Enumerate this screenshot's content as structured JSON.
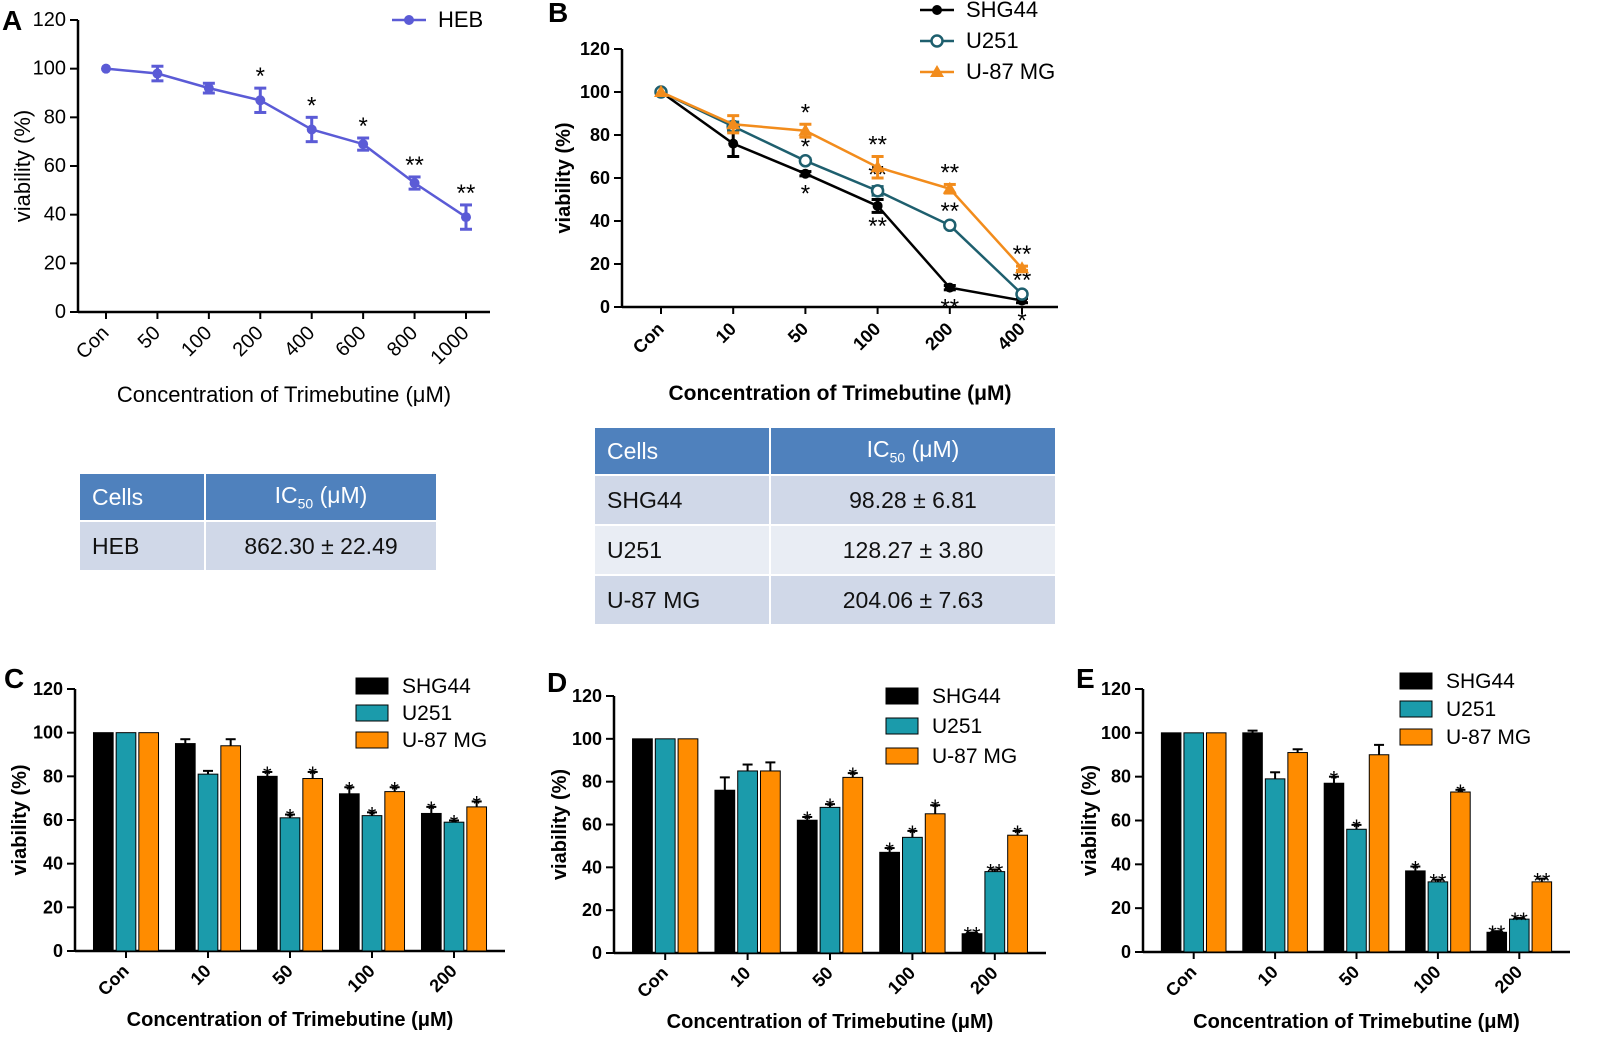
{
  "panels": {
    "A": "A",
    "B": "B",
    "C": "C",
    "D": "D",
    "E": "E"
  },
  "chart_data": [
    {
      "id": "A",
      "type": "line",
      "ylabel": "viability (%)",
      "xlabel": "Concentration of Trimebutine (μM)",
      "categories": [
        "Con",
        "50",
        "100",
        "200",
        "400",
        "600",
        "800",
        "1000"
      ],
      "yticks": [
        "0",
        "20",
        "40",
        "60",
        "80",
        "100",
        "120"
      ],
      "ylim": [
        0,
        120
      ],
      "series": [
        {
          "name": "HEB",
          "color": "#5b5bd6",
          "marker": "circle",
          "values": [
            100,
            98,
            92,
            87,
            75,
            69,
            53,
            39
          ],
          "errors": [
            0,
            3,
            2,
            5,
            5,
            2.5,
            2.5,
            5
          ],
          "sig": [
            "",
            "",
            "",
            "*",
            "*",
            "*",
            "**",
            "**"
          ]
        }
      ]
    },
    {
      "id": "B",
      "type": "line",
      "ylabel": "viability (%)",
      "xlabel": "Concentration of Trimebutine (μM)",
      "categories": [
        "Con",
        "10",
        "50",
        "100",
        "200",
        "400"
      ],
      "yticks": [
        "0",
        "20",
        "40",
        "60",
        "80",
        "100",
        "120"
      ],
      "ylim": [
        0,
        120
      ],
      "series": [
        {
          "name": "SHG44",
          "color": "#000000",
          "marker": "circle",
          "values": [
            100,
            76,
            62,
            47,
            9,
            3
          ],
          "errors": [
            0,
            6,
            1,
            3,
            1,
            1
          ],
          "sig": [
            "",
            "",
            "*",
            "**",
            "**",
            "*"
          ]
        },
        {
          "name": "U251",
          "color": "#1e5f6e",
          "marker": "open-circle",
          "values": [
            100,
            84,
            68,
            54,
            38,
            6
          ],
          "errors": [
            0,
            2,
            1,
            2,
            1,
            1
          ],
          "sig": [
            "",
            "",
            "*",
            "**",
            "**",
            "**"
          ]
        },
        {
          "name": "U-87 MG",
          "color": "#f28c1c",
          "marker": "triangle",
          "values": [
            100,
            85,
            82,
            65,
            55,
            18
          ],
          "errors": [
            0,
            4,
            3,
            5,
            2,
            1
          ],
          "sig": [
            "",
            "",
            "*",
            "**",
            "**",
            "**"
          ]
        }
      ]
    },
    {
      "id": "C",
      "type": "bar",
      "ylabel": "viability (%)",
      "xlabel": "Concentration of Trimebutine (μM)",
      "categories": [
        "Con",
        "10",
        "50",
        "100",
        "200"
      ],
      "yticks": [
        "0",
        "20",
        "40",
        "60",
        "80",
        "100",
        "120"
      ],
      "ylim": [
        0,
        120
      ],
      "series": [
        {
          "name": "SHG44",
          "color": "#000000",
          "values": [
            100,
            95,
            80,
            72,
            63
          ],
          "errors": [
            0,
            2,
            2,
            3,
            3
          ],
          "sig": [
            "",
            "",
            "*",
            "*",
            "*"
          ]
        },
        {
          "name": "U251",
          "color": "#1b9bab",
          "values": [
            100,
            81,
            61,
            62,
            59
          ],
          "errors": [
            0,
            1.5,
            1.5,
            1.5,
            0.8
          ],
          "sig": [
            "",
            "",
            "*",
            "*",
            "*"
          ]
        },
        {
          "name": "U-87 MG",
          "color": "#ff8c00",
          "values": [
            100,
            94,
            79,
            73,
            66
          ],
          "errors": [
            0,
            3,
            3,
            2,
            2.5
          ],
          "sig": [
            "",
            "",
            "*",
            "*",
            "*"
          ]
        }
      ]
    },
    {
      "id": "D",
      "type": "bar",
      "ylabel": "viability (%)",
      "xlabel": "Concentration of Trimebutine (μM)",
      "categories": [
        "Con",
        "10",
        "50",
        "100",
        "200"
      ],
      "yticks": [
        "0",
        "20",
        "40",
        "60",
        "80",
        "100",
        "120"
      ],
      "ylim": [
        0,
        120
      ],
      "series": [
        {
          "name": "SHG44",
          "color": "#000000",
          "values": [
            100,
            76,
            62,
            47,
            9
          ],
          "errors": [
            0,
            6,
            1.5,
            2,
            0.5
          ],
          "sig": [
            "",
            "",
            "*",
            "*",
            "**"
          ]
        },
        {
          "name": "U251",
          "color": "#1b9bab",
          "values": [
            100,
            85,
            68,
            54,
            38
          ],
          "errors": [
            0,
            3,
            1.5,
            3,
            1
          ],
          "sig": [
            "",
            "",
            "*",
            "*",
            "**"
          ]
        },
        {
          "name": "U-87 MG",
          "color": "#ff8c00",
          "values": [
            100,
            85,
            82,
            65,
            55
          ],
          "errors": [
            0,
            4,
            2,
            4,
            2
          ],
          "sig": [
            "",
            "",
            "*",
            "*",
            "*"
          ]
        }
      ]
    },
    {
      "id": "E",
      "type": "bar",
      "ylabel": "viability (%)",
      "xlabel": "Concentration of Trimebutine (μM)",
      "categories": [
        "Con",
        "10",
        "50",
        "100",
        "200"
      ],
      "yticks": [
        "0",
        "20",
        "40",
        "60",
        "80",
        "100",
        "120"
      ],
      "ylim": [
        0,
        120
      ],
      "series": [
        {
          "name": "SHG44",
          "color": "#000000",
          "values": [
            100,
            100,
            77,
            37,
            9
          ],
          "errors": [
            0,
            1,
            3,
            2,
            0.5
          ],
          "sig": [
            "",
            "",
            "*",
            "*",
            "**"
          ]
        },
        {
          "name": "U251",
          "color": "#1b9bab",
          "values": [
            100,
            79,
            56,
            32,
            15
          ],
          "errors": [
            0,
            3,
            2,
            1,
            0.5
          ],
          "sig": [
            "",
            "",
            "*",
            "**",
            "**"
          ]
        },
        {
          "name": "U-87 MG",
          "color": "#ff8c00",
          "values": [
            100,
            91,
            90,
            73,
            32
          ],
          "errors": [
            0,
            1.5,
            4.5,
            1,
            1.5
          ],
          "sig": [
            "",
            "",
            "",
            "*",
            "**"
          ]
        }
      ]
    }
  ],
  "tableA": {
    "headers": [
      "Cells",
      "IC50 (μM)"
    ],
    "rows": [
      {
        "cell": "HEB",
        "value": "862.30 ± 22.49"
      }
    ]
  },
  "tableB": {
    "headers": [
      "Cells",
      "IC50 (μM)"
    ],
    "rows": [
      {
        "cell": "SHG44",
        "value": "98.28 ± 6.81"
      },
      {
        "cell": "U251",
        "value": "128.27 ± 3.80"
      },
      {
        "cell": "U-87 MG",
        "value": "204.06 ± 7.63"
      }
    ]
  }
}
